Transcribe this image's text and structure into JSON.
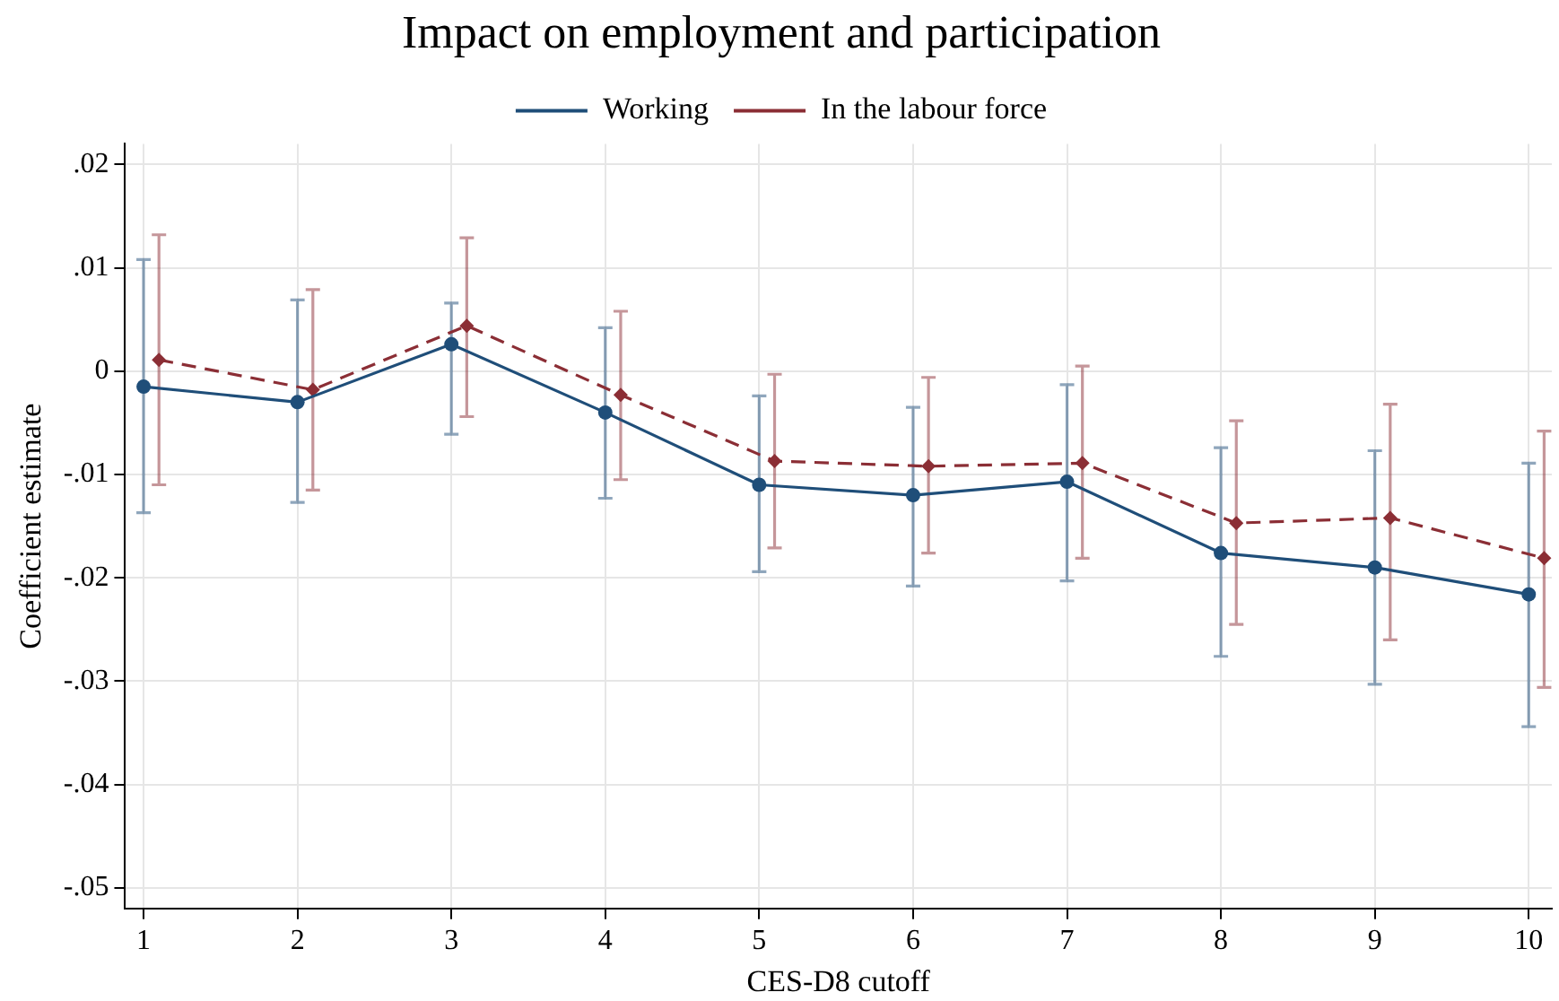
{
  "chart_data": {
    "type": "line",
    "title": "Impact on employment and participation",
    "xlabel": "CES-D8 cutoff",
    "ylabel": "Coefficient estimate",
    "xlim": [
      0.88,
      10.15
    ],
    "xticks": [
      1,
      2,
      3,
      4,
      5,
      6,
      7,
      8,
      9,
      10
    ],
    "ylim": [
      -0.052,
      0.022
    ],
    "yticks": [
      {
        "value": 0.02,
        "label": ".02"
      },
      {
        "value": 0.01,
        "label": ".01"
      },
      0,
      {
        "value": -0.01,
        "label": "-.01"
      },
      {
        "value": -0.02,
        "label": "-.02"
      },
      {
        "value": -0.03,
        "label": "-.03"
      },
      {
        "value": -0.04,
        "label": "-.04"
      },
      {
        "value": -0.05,
        "label": "-.05"
      }
    ],
    "grid": true,
    "legend": "top",
    "series": [
      {
        "name": "Working",
        "color": "#1f4e79",
        "marker": "circle",
        "line_style": "solid",
        "x": [
          1,
          2,
          3,
          4,
          5,
          6,
          7,
          8,
          9,
          10
        ],
        "values": [
          -0.0015,
          -0.003,
          0.0026,
          -0.004,
          -0.011,
          -0.012,
          -0.0107,
          -0.0176,
          -0.019,
          -0.0216
        ],
        "errors": [
          [
            -0.0137,
            0.0108
          ],
          [
            -0.0127,
            0.0069
          ],
          [
            -0.0061,
            0.0066
          ],
          [
            -0.0123,
            0.0042
          ],
          [
            -0.0194,
            -0.0024
          ],
          [
            -0.0208,
            -0.0035
          ],
          [
            -0.0203,
            -0.0013
          ],
          [
            -0.0276,
            -0.0074
          ],
          [
            -0.0303,
            -0.0077
          ],
          [
            -0.0344,
            -0.0089
          ]
        ]
      },
      {
        "name": "In the labour force",
        "color": "#8b2e35",
        "marker": "diamond",
        "line_style": "dashed",
        "x": [
          1.1,
          2.1,
          3.1,
          4.1,
          5.1,
          6.1,
          7.1,
          8.1,
          9.1,
          10.1
        ],
        "values": [
          0.0011,
          -0.0018,
          0.0044,
          -0.0023,
          -0.0087,
          -0.0092,
          -0.0089,
          -0.0147,
          -0.0142,
          -0.0181
        ],
        "errors": [
          [
            -0.011,
            0.0132
          ],
          [
            -0.0115,
            0.0079
          ],
          [
            -0.0044,
            0.0129
          ],
          [
            -0.0105,
            0.0058
          ],
          [
            -0.0171,
            -0.0003
          ],
          [
            -0.0176,
            -0.0006
          ],
          [
            -0.0181,
            0.0005
          ],
          [
            -0.0245,
            -0.0048
          ],
          [
            -0.026,
            -0.0032
          ],
          [
            -0.0306,
            -0.0058
          ]
        ]
      }
    ]
  }
}
